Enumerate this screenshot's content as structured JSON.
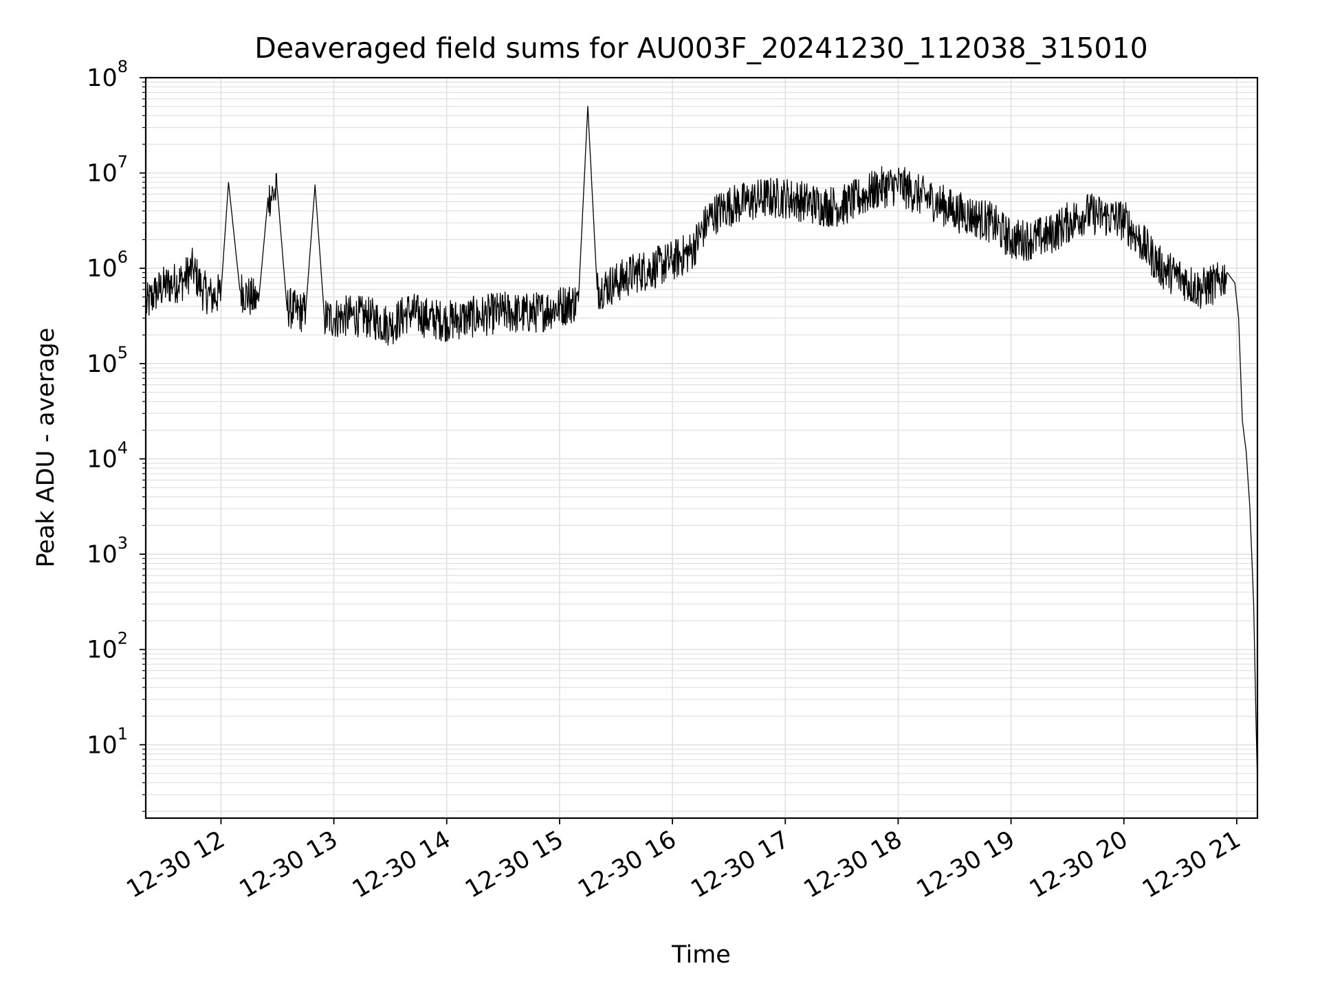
{
  "chart_data": {
    "type": "line",
    "title": "Deaveraged field sums for AU003F_20241230_112038_315010",
    "xlabel": "Time",
    "ylabel": "Peak ADU - average",
    "yscale": "log",
    "ylim": [
      1.7,
      100000000
    ],
    "xlim": [
      "2024-12-30 11:20",
      "2024-12-30 21:11"
    ],
    "grid": true,
    "line_color": "#000000",
    "grid_color": "#e0e0e0",
    "x_ticks": [
      {
        "value": "2024-12-30 12:00",
        "label": "12-30 12"
      },
      {
        "value": "2024-12-30 13:00",
        "label": "12-30 13"
      },
      {
        "value": "2024-12-30 14:00",
        "label": "12-30 14"
      },
      {
        "value": "2024-12-30 15:00",
        "label": "12-30 15"
      },
      {
        "value": "2024-12-30 16:00",
        "label": "12-30 16"
      },
      {
        "value": "2024-12-30 17:00",
        "label": "12-30 17"
      },
      {
        "value": "2024-12-30 18:00",
        "label": "12-30 18"
      },
      {
        "value": "2024-12-30 19:00",
        "label": "12-30 19"
      },
      {
        "value": "2024-12-30 20:00",
        "label": "12-30 20"
      },
      {
        "value": "2024-12-30 21:00",
        "label": "12-30 21"
      }
    ],
    "y_ticks": [
      {
        "value": 10,
        "base": "10",
        "exp": "1"
      },
      {
        "value": 100,
        "base": "10",
        "exp": "2"
      },
      {
        "value": 1000,
        "base": "10",
        "exp": "3"
      },
      {
        "value": 10000,
        "base": "10",
        "exp": "4"
      },
      {
        "value": 100000,
        "base": "10",
        "exp": "5"
      },
      {
        "value": 1000000,
        "base": "10",
        "exp": "6"
      },
      {
        "value": 10000000,
        "base": "10",
        "exp": "7"
      },
      {
        "value": 100000000,
        "base": "10",
        "exp": "8"
      }
    ],
    "series": [
      {
        "x": [
          "2024-12-30 11:20",
          "2024-12-30 11:25",
          "2024-12-30 11:30",
          "2024-12-30 11:35",
          "2024-12-30 11:40",
          "2024-12-30 11:45",
          "2024-12-30 11:50",
          "2024-12-30 11:55",
          "2024-12-30 12:00",
          "2024-12-30 12:04",
          "2024-12-30 12:10",
          "2024-12-30 12:15",
          "2024-12-30 12:20",
          "2024-12-30 12:25",
          "2024-12-30 12:30",
          "2024-12-30 12:35",
          "2024-12-30 12:40",
          "2024-12-30 12:45",
          "2024-12-30 12:50",
          "2024-12-30 12:55",
          "2024-12-30 13:00",
          "2024-12-30 13:10",
          "2024-12-30 13:20",
          "2024-12-30 13:30",
          "2024-12-30 13:40",
          "2024-12-30 13:50",
          "2024-12-30 14:00",
          "2024-12-30 14:10",
          "2024-12-30 14:20",
          "2024-12-30 14:30",
          "2024-12-30 14:40",
          "2024-12-30 14:50",
          "2024-12-30 15:00",
          "2024-12-30 15:10",
          "2024-12-30 15:15",
          "2024-12-30 15:20",
          "2024-12-30 15:30",
          "2024-12-30 15:40",
          "2024-12-30 15:50",
          "2024-12-30 16:00",
          "2024-12-30 16:10",
          "2024-12-30 16:20",
          "2024-12-30 16:30",
          "2024-12-30 16:40",
          "2024-12-30 16:50",
          "2024-12-30 17:00",
          "2024-12-30 17:10",
          "2024-12-30 17:20",
          "2024-12-30 17:30",
          "2024-12-30 17:40",
          "2024-12-30 17:50",
          "2024-12-30 18:00",
          "2024-12-30 18:10",
          "2024-12-30 18:20",
          "2024-12-30 18:30",
          "2024-12-30 18:40",
          "2024-12-30 18:50",
          "2024-12-30 19:00",
          "2024-12-30 19:10",
          "2024-12-30 19:20",
          "2024-12-30 19:30",
          "2024-12-30 19:40",
          "2024-12-30 19:50",
          "2024-12-30 20:00",
          "2024-12-30 20:10",
          "2024-12-30 20:20",
          "2024-12-30 20:30",
          "2024-12-30 20:40",
          "2024-12-30 20:50",
          "2024-12-30 20:55",
          "2024-12-30 20:59",
          "2024-12-30 21:01",
          "2024-12-30 21:03",
          "2024-12-30 21:05",
          "2024-12-30 21:07",
          "2024-12-30 21:09",
          "2024-12-30 21:10",
          "2024-12-30 21:11"
        ],
        "values": [
          400000,
          550000,
          650000,
          700000,
          750000,
          1000000,
          600000,
          500000,
          550000,
          8000000,
          600000,
          500000,
          450000,
          5500000,
          6500000,
          400000,
          350000,
          350000,
          7500000,
          300000,
          300000,
          320000,
          300000,
          250000,
          350000,
          300000,
          280000,
          300000,
          320000,
          350000,
          330000,
          350000,
          400000,
          450000,
          50000000,
          600000,
          700000,
          900000,
          1000000,
          1200000,
          1500000,
          3500000,
          4500000,
          5000000,
          5500000,
          5500000,
          5000000,
          4500000,
          4500000,
          5500000,
          7000000,
          7500000,
          6000000,
          5000000,
          4000000,
          3500000,
          3000000,
          2000000,
          2000000,
          2200000,
          3000000,
          3800000,
          3500000,
          3200000,
          1800000,
          1000000,
          800000,
          600000,
          700000,
          900000,
          700000,
          300000,
          25000,
          12000,
          3000,
          300,
          30,
          4
        ]
      }
    ]
  }
}
